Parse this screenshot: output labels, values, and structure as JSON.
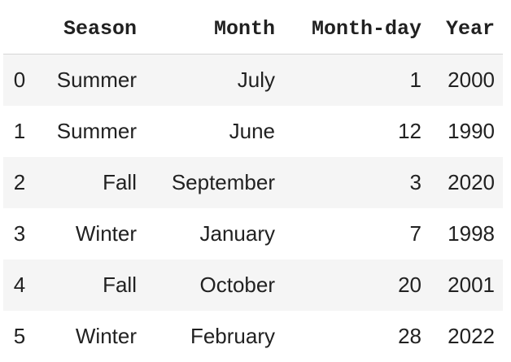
{
  "table": {
    "columns": [
      "Season",
      "Month",
      "Month-day",
      "Year"
    ],
    "rows": [
      {
        "index": "0",
        "season": "Summer",
        "month": "July",
        "month_day": "1",
        "year": "2000"
      },
      {
        "index": "1",
        "season": "Summer",
        "month": "June",
        "month_day": "12",
        "year": "1990"
      },
      {
        "index": "2",
        "season": "Fall",
        "month": "September",
        "month_day": "3",
        "year": "2020"
      },
      {
        "index": "3",
        "season": "Winter",
        "month": "January",
        "month_day": "7",
        "year": "1998"
      },
      {
        "index": "4",
        "season": "Fall",
        "month": "October",
        "month_day": "20",
        "year": "2001"
      },
      {
        "index": "5",
        "season": "Winter",
        "month": "February",
        "month_day": "28",
        "year": "2022"
      }
    ]
  },
  "colors": {
    "text": "#212121",
    "striped_row": "#f5f5f5",
    "header_rule": "#d6d6d6"
  }
}
